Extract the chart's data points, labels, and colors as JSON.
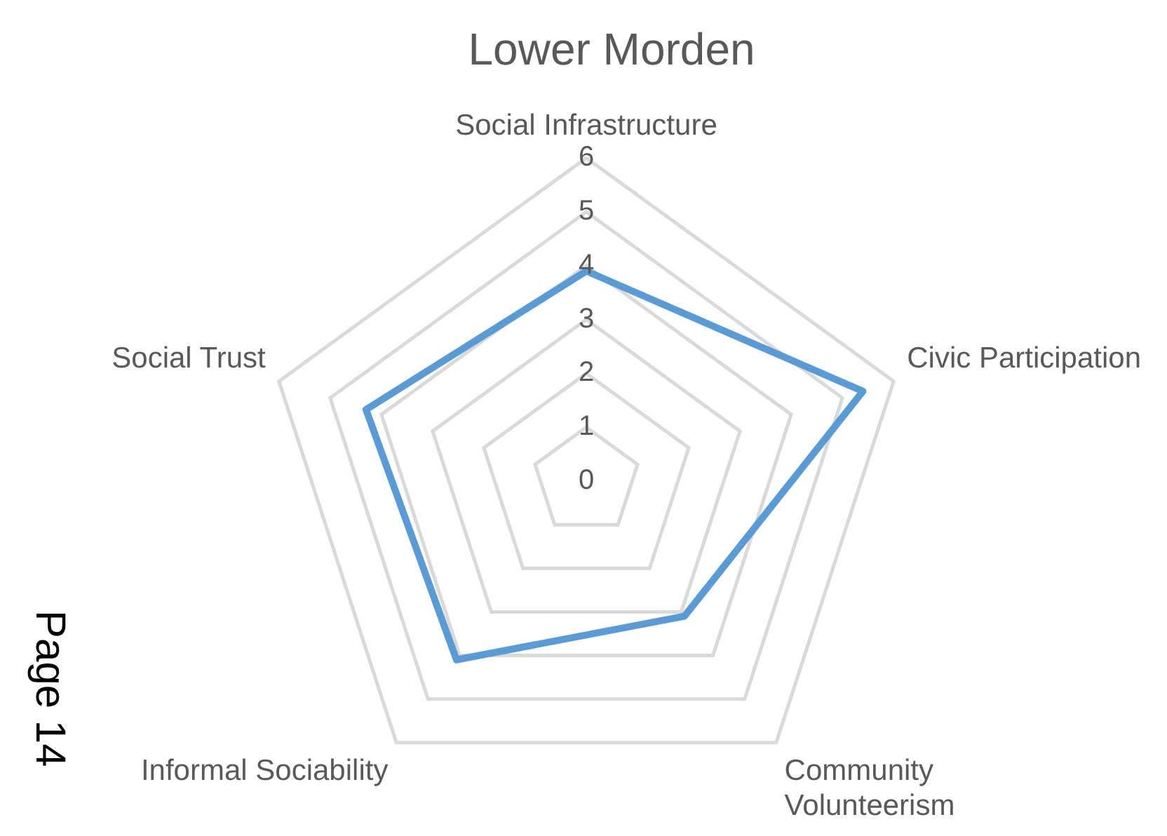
{
  "chart_data": {
    "type": "radar",
    "title": "Lower Morden",
    "categories": [
      "Social Infrastructure",
      "Civic Participation",
      "Community Volunteerism",
      "Informal Sociability",
      "Social Trust"
    ],
    "series": [
      {
        "color": "#5b9bd5",
        "values": [
          3.9,
          5.4,
          3.1,
          4.1,
          4.3
        ]
      }
    ],
    "ylim": [
      0,
      6
    ],
    "yticks": [
      0,
      1,
      2,
      3,
      4,
      5,
      6
    ],
    "grid": true,
    "legend": false,
    "marker": "none",
    "annotations": [
      "Page 14"
    ]
  }
}
